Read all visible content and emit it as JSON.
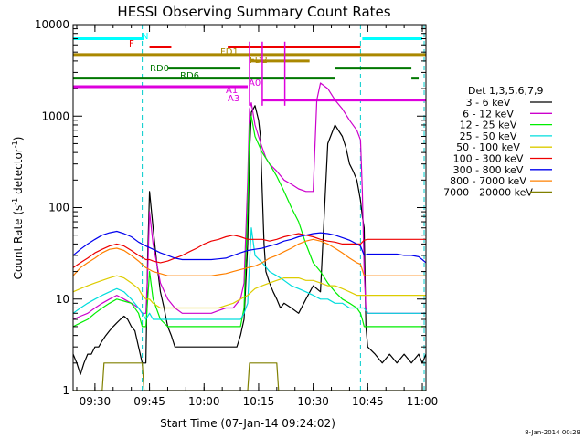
{
  "chart_data": {
    "type": "line",
    "title": "HESSI Observing Summary Count Rates",
    "xlabel": "Start Time (07-Jan-14 09:24:02)",
    "ylabel": "Count Rate (s⁻¹ detector⁻¹)",
    "ylabel_parts": [
      "Count Rate (s",
      "-1",
      " detector",
      "-1",
      ")"
    ],
    "x_unit": "minutes after 09:24:02",
    "xlim": [
      0,
      97
    ],
    "ylim": [
      1,
      10000
    ],
    "yscale": "log",
    "x_ticks": [
      {
        "label": "09:30",
        "value": 6
      },
      {
        "label": "09:45",
        "value": 21
      },
      {
        "label": "10:00",
        "value": 36
      },
      {
        "label": "10:15",
        "value": 51
      },
      {
        "label": "10:30",
        "value": 66
      },
      {
        "label": "10:45",
        "value": 81
      },
      {
        "label": "11:00",
        "value": 96
      }
    ],
    "y_ticks": [
      {
        "label": "1",
        "value": 1
      },
      {
        "label": "10",
        "value": 10
      },
      {
        "label": "100",
        "value": 100
      },
      {
        "label": "1000",
        "value": 1000
      },
      {
        "label": "10000",
        "value": 10000
      }
    ],
    "legend_title": "Det 1,3,5,6,7,9",
    "legend_placement": "right",
    "series": [
      {
        "name": "3 - 6 keV",
        "color": "#000000",
        "x": [
          0,
          1,
          2,
          3,
          4,
          5,
          6,
          7,
          8,
          9,
          10,
          11,
          12,
          13,
          14,
          15,
          16,
          17,
          18,
          19,
          19.5,
          20,
          20.5,
          21,
          22,
          23,
          24,
          25,
          26,
          27,
          28,
          29,
          30,
          31,
          33,
          35,
          37,
          39,
          41,
          43,
          45,
          46,
          47,
          48,
          48.5,
          49,
          50,
          51,
          51.5,
          52,
          52.5,
          53,
          54,
          55,
          56,
          57,
          58,
          60,
          62,
          64,
          66,
          68,
          70,
          72,
          74,
          75,
          76,
          77,
          78,
          79,
          79.5,
          80,
          80.5,
          81,
          83,
          85,
          87,
          89,
          91,
          93,
          95,
          96,
          97
        ],
        "y": [
          2.5,
          2,
          1.5,
          2,
          2.5,
          2.5,
          3,
          3,
          3.5,
          4,
          4.5,
          5,
          5.5,
          6,
          6.5,
          6,
          5,
          4.5,
          3,
          2,
          2,
          2,
          30,
          150,
          60,
          25,
          12,
          8,
          5,
          4,
          3,
          3,
          3,
          3,
          3,
          3,
          3,
          3,
          3,
          3,
          3,
          4,
          6,
          40,
          400,
          1100,
          1300,
          900,
          600,
          150,
          40,
          20,
          15,
          12,
          10,
          8,
          9,
          8,
          7,
          10,
          14,
          12,
          500,
          800,
          600,
          450,
          300,
          250,
          200,
          120,
          80,
          60,
          5,
          3,
          2.5,
          2,
          2.5,
          2,
          2.5,
          2,
          2.5,
          2,
          2.5
        ]
      },
      {
        "name": "6 - 12 keV",
        "color": "#cc00cc",
        "x": [
          0,
          2,
          4,
          6,
          8,
          10,
          12,
          14,
          16,
          18,
          19,
          20,
          20.5,
          21,
          22,
          24,
          26,
          28,
          30,
          32,
          34,
          36,
          38,
          40,
          42,
          44,
          46,
          47,
          48,
          48.5,
          49,
          50,
          51,
          52,
          53,
          54,
          56,
          58,
          60,
          62,
          64,
          66,
          67,
          68,
          70,
          72,
          74,
          76,
          78,
          79,
          79.5,
          80,
          80.5,
          81,
          82,
          84,
          86,
          88,
          90,
          92,
          94,
          96,
          97
        ],
        "y": [
          6,
          6.5,
          7,
          8,
          9,
          10,
          11,
          10,
          9,
          8,
          7,
          7,
          20,
          90,
          40,
          15,
          10,
          8,
          7,
          7,
          7,
          7,
          7,
          7.5,
          8,
          8,
          10,
          15,
          200,
          1200,
          1400,
          800,
          600,
          450,
          350,
          300,
          250,
          200,
          180,
          160,
          150,
          150,
          1500,
          2300,
          2000,
          1500,
          1200,
          900,
          700,
          550,
          150,
          20,
          8,
          7,
          7,
          7,
          7,
          7,
          7,
          7,
          7,
          7,
          7
        ]
      },
      {
        "name": "12 - 25 keV",
        "color": "#00ee00",
        "x": [
          0,
          2,
          4,
          6,
          8,
          10,
          12,
          14,
          16,
          18,
          19,
          20,
          20.5,
          21,
          22,
          24,
          26,
          28,
          30,
          32,
          34,
          36,
          38,
          40,
          42,
          44,
          46,
          47,
          48,
          48.5,
          49,
          50,
          52,
          54,
          56,
          58,
          60,
          62,
          64,
          66,
          68,
          70,
          72,
          74,
          76,
          78,
          79,
          79.5,
          80,
          80.5,
          81,
          83,
          85,
          87,
          89,
          91,
          93,
          95,
          96,
          97
        ],
        "y": [
          5,
          5.5,
          6,
          7,
          8,
          9,
          10,
          9.5,
          9,
          7,
          5,
          5,
          10,
          20,
          10,
          6,
          5,
          5,
          5,
          5,
          5,
          5,
          5,
          5,
          5,
          5,
          5,
          8,
          100,
          800,
          1000,
          600,
          400,
          300,
          220,
          150,
          100,
          70,
          40,
          25,
          20,
          15,
          12,
          10,
          9,
          8,
          7,
          6,
          5,
          5,
          5,
          5,
          5,
          5,
          5,
          5,
          5,
          5,
          5,
          5
        ]
      },
      {
        "name": "25 - 50 keV",
        "color": "#00dddd",
        "x": [
          0,
          2,
          4,
          6,
          8,
          10,
          12,
          14,
          16,
          18,
          19,
          20,
          21,
          22,
          24,
          26,
          28,
          30,
          32,
          34,
          36,
          38,
          40,
          42,
          44,
          46,
          47,
          48,
          48.5,
          49,
          50,
          52,
          54,
          56,
          58,
          60,
          62,
          64,
          66,
          68,
          70,
          72,
          74,
          76,
          78,
          79,
          80,
          81,
          83,
          85,
          87,
          89,
          91,
          93,
          95,
          96,
          97
        ],
        "y": [
          7,
          8,
          9,
          10,
          11,
          12,
          13,
          12,
          10,
          8,
          7,
          6,
          7,
          6,
          6,
          6,
          6,
          6,
          6,
          6,
          6,
          6,
          6,
          6,
          6,
          6,
          7,
          9,
          25,
          60,
          30,
          25,
          20,
          18,
          16,
          14,
          13,
          12,
          11,
          10,
          10,
          9,
          9,
          8,
          8,
          8,
          8,
          7,
          7,
          7,
          7,
          7,
          7,
          7,
          7,
          7,
          7
        ]
      },
      {
        "name": "50 - 100 keV",
        "color": "#ddcc00",
        "x": [
          0,
          2,
          4,
          6,
          8,
          10,
          12,
          14,
          16,
          18,
          19,
          20,
          21,
          22,
          24,
          26,
          28,
          30,
          32,
          34,
          36,
          38,
          40,
          42,
          44,
          46,
          48,
          50,
          52,
          54,
          56,
          58,
          60,
          62,
          64,
          66,
          68,
          70,
          72,
          74,
          76,
          78,
          79,
          80,
          81,
          83,
          85,
          87,
          89,
          91,
          93,
          95,
          96,
          97
        ],
        "y": [
          12,
          13,
          14,
          15,
          16,
          17,
          18,
          17,
          15,
          13,
          11,
          10,
          10,
          9,
          8,
          8,
          8,
          8,
          8,
          8,
          8,
          8,
          8,
          8.5,
          9,
          10,
          11,
          13,
          14,
          15,
          16,
          17,
          17,
          17,
          16,
          16,
          15,
          14,
          14,
          13,
          12,
          11,
          11,
          11,
          11,
          11,
          11,
          11,
          11,
          11,
          11,
          11,
          11,
          11
        ]
      },
      {
        "name": "100 - 300 keV",
        "color": "#ee0000",
        "x": [
          0,
          2,
          4,
          6,
          8,
          10,
          12,
          14,
          16,
          18,
          20,
          21,
          22,
          24,
          26,
          28,
          30,
          32,
          34,
          36,
          38,
          40,
          42,
          44,
          46,
          48,
          50,
          52,
          54,
          56,
          58,
          60,
          62,
          64,
          66,
          68,
          70,
          72,
          74,
          76,
          78,
          79,
          80,
          81,
          83,
          85,
          87,
          89,
          91,
          93,
          95,
          96,
          97
        ],
        "y": [
          22,
          25,
          28,
          32,
          35,
          38,
          40,
          38,
          34,
          30,
          27,
          27,
          26,
          25,
          26,
          28,
          30,
          33,
          36,
          40,
          43,
          45,
          48,
          50,
          48,
          45,
          45,
          45,
          43,
          45,
          48,
          50,
          52,
          50,
          48,
          45,
          43,
          42,
          40,
          40,
          40,
          40,
          44,
          45,
          45,
          45,
          45,
          45,
          45,
          45,
          45,
          45,
          45
        ]
      },
      {
        "name": "300 - 800 keV",
        "color": "#0000ee",
        "x": [
          0,
          2,
          4,
          6,
          8,
          10,
          12,
          14,
          16,
          18,
          20,
          22,
          24,
          26,
          28,
          30,
          32,
          34,
          36,
          38,
          40,
          42,
          44,
          46,
          48,
          50,
          52,
          54,
          56,
          58,
          60,
          62,
          64,
          66,
          68,
          70,
          72,
          74,
          76,
          78,
          79,
          80,
          81,
          83,
          85,
          87,
          89,
          91,
          93,
          95,
          96,
          97
        ],
        "y": [
          30,
          35,
          40,
          45,
          50,
          53,
          55,
          52,
          48,
          42,
          38,
          35,
          32,
          30,
          28,
          27,
          27,
          27,
          27,
          27,
          27.5,
          28,
          30,
          32,
          34,
          35,
          36,
          38,
          40,
          43,
          45,
          48,
          50,
          52,
          53,
          52,
          50,
          47,
          44,
          40,
          38,
          30,
          31,
          31,
          31,
          31,
          31,
          30,
          30,
          29,
          27,
          25
        ]
      },
      {
        "name": "800 - 7000 keV",
        "color": "#ff8000",
        "x": [
          0,
          2,
          4,
          6,
          8,
          10,
          12,
          14,
          16,
          18,
          20,
          22,
          24,
          26,
          28,
          30,
          32,
          34,
          36,
          38,
          40,
          42,
          44,
          46,
          48,
          50,
          52,
          54,
          56,
          58,
          60,
          62,
          64,
          66,
          68,
          70,
          72,
          74,
          76,
          78,
          79,
          80,
          81,
          83,
          85,
          87,
          89,
          91,
          93,
          95,
          96,
          97
        ],
        "y": [
          18,
          22,
          25,
          28,
          32,
          35,
          36,
          34,
          30,
          26,
          22,
          20,
          19,
          18,
          18,
          18,
          18,
          18,
          18,
          18,
          18.5,
          19,
          20,
          21,
          22,
          23,
          25,
          28,
          30,
          33,
          36,
          40,
          43,
          45,
          43,
          40,
          36,
          32,
          28,
          25,
          24,
          18,
          18,
          18,
          18,
          18,
          18,
          18,
          18,
          18,
          18,
          18
        ]
      },
      {
        "name": "7000 - 20000 keV",
        "color": "#808000",
        "x": [
          0,
          8,
          8.5,
          19,
          19.5,
          48,
          48.5,
          56,
          56.5,
          79,
          79.5,
          97
        ],
        "y": [
          1,
          1,
          2,
          2,
          1,
          1,
          2,
          2,
          1,
          1,
          1,
          1
        ]
      }
    ],
    "attenuator_states": [
      {
        "label": "A0",
        "y": 2100,
        "color": "#dd00dd"
      },
      {
        "label": "A1",
        "y": 1500,
        "color": "#dd00dd"
      },
      {
        "label": "A3",
        "y": 1300,
        "color": "#dd00dd"
      }
    ],
    "flags": [
      {
        "label": "N",
        "color": "#00ffff",
        "y": 7000,
        "spans": [
          [
            0,
            19.5
          ],
          [
            79.5,
            96
          ]
        ]
      },
      {
        "label": "F",
        "color": "#ee0000",
        "y": 5700,
        "spans": [
          [
            21,
            27
          ],
          [
            42.5,
            79
          ]
        ]
      },
      {
        "label": "FD1",
        "color": "#aa8800",
        "y": 4700,
        "spans": [
          [
            0,
            52
          ],
          [
            52,
            97
          ]
        ]
      },
      {
        "label": "FD2",
        "color": "#aa8800",
        "y": 4000,
        "spans": [
          [
            49,
            65
          ]
        ]
      },
      {
        "label": "RD0",
        "color": "#007700",
        "y": 3350,
        "spans": [
          [
            26,
            46
          ],
          [
            72,
            93
          ]
        ]
      },
      {
        "label": "RD6",
        "color": "#007700",
        "y": 2600,
        "spans": [
          [
            0,
            72
          ],
          [
            93,
            95
          ]
        ]
      },
      {
        "label": "A0",
        "color": "#dd00dd",
        "y": 2100,
        "spans": [
          [
            0,
            48
          ]
        ]
      },
      {
        "label": "A3",
        "color": "#dd00dd",
        "y": 1500,
        "spans": [
          [
            52,
            97
          ]
        ]
      }
    ],
    "flag_marker_x": [
      48.5,
      52,
      58.2
    ],
    "saa_lines_x": [
      19,
      79,
      96.5
    ]
  },
  "footer": {
    "timestamp": "8-Jan-2014 00:29"
  }
}
